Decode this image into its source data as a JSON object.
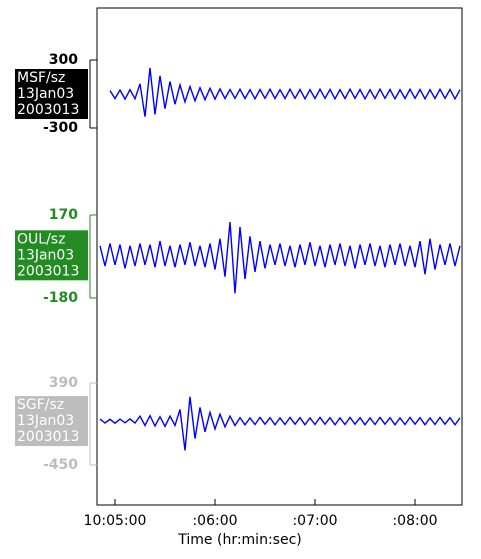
{
  "chart_data": {
    "type": "line",
    "xlabel": "Time (hr:min:sec)",
    "xlim": [
      4.82,
      8.47
    ],
    "xticks": [
      {
        "value": 5,
        "label": "10:05:00"
      },
      {
        "value": 6,
        "label": ":06:00"
      },
      {
        "value": 7,
        "label": ":07:00"
      },
      {
        "value": 8,
        "label": ":08:00"
      }
    ],
    "x": [
      4.85,
      4.9,
      4.95,
      5,
      5.05,
      5.1,
      5.15,
      5.2,
      5.25,
      5.3,
      5.35,
      5.4,
      5.45,
      5.5,
      5.55,
      5.6,
      5.65,
      5.7,
      5.75,
      5.8,
      5.85,
      5.9,
      5.95,
      6,
      6.05,
      6.1,
      6.15,
      6.2,
      6.25,
      6.3,
      6.35,
      6.4,
      6.45,
      6.5,
      6.55,
      6.6,
      6.65,
      6.7,
      6.75,
      6.8,
      6.85,
      6.9,
      6.95,
      7,
      7.05,
      7.1,
      7.15,
      7.2,
      7.25,
      7.3,
      7.35,
      7.4,
      7.45,
      7.5,
      7.55,
      7.6,
      7.65,
      7.7,
      7.75,
      7.8,
      7.85,
      7.9,
      7.95,
      8,
      8.05,
      8.1,
      8.15,
      8.2,
      8.25,
      8.3,
      8.35,
      8.4,
      8.45
    ],
    "series": [
      {
        "name": "MSF/sz",
        "date": "13Jan03",
        "julian_day": "2003013",
        "label_color": "#000000",
        "color": "#0000ff",
        "ylim": [
          -300,
          300
        ],
        "yticks": [
          -300,
          300
        ],
        "values": [
          null,
          null,
          30,
          -40,
          35,
          -45,
          38,
          -42,
          90,
          -200,
          230,
          -180,
          160,
          -130,
          110,
          -90,
          80,
          -70,
          65,
          -60,
          55,
          -50,
          50,
          -45,
          45,
          -40,
          40,
          -38,
          42,
          -40,
          38,
          -42,
          40,
          -38,
          42,
          -40,
          38,
          -40,
          42,
          -38,
          40,
          -42,
          38,
          -40,
          42,
          -38,
          40,
          -42,
          38,
          -40,
          42,
          -38,
          40,
          -42,
          38,
          -40,
          42,
          -38,
          40,
          -42,
          38,
          -40,
          42,
          -38,
          40,
          -42,
          38,
          -40,
          42,
          -38,
          40,
          -42,
          38
        ]
      },
      {
        "name": "OUL/sz",
        "date": "13Jan03",
        "julian_day": "2003013",
        "label_color": "#228b22",
        "color": "#0000ff",
        "ylim": [
          -180,
          170
        ],
        "yticks": [
          -180,
          170
        ],
        "values": [
          40,
          -45,
          50,
          -40,
          45,
          -55,
          40,
          -45,
          50,
          -40,
          45,
          -50,
          60,
          -45,
          40,
          -50,
          45,
          -40,
          55,
          -45,
          40,
          -50,
          50,
          -60,
          70,
          -90,
          140,
          -160,
          120,
          -100,
          80,
          -70,
          60,
          -55,
          45,
          -40,
          50,
          -45,
          40,
          -50,
          45,
          -40,
          55,
          -45,
          40,
          -50,
          45,
          -40,
          50,
          -45,
          40,
          -55,
          45,
          -40,
          50,
          -45,
          40,
          -50,
          45,
          -40,
          50,
          -45,
          40,
          -50,
          60,
          -80,
          70,
          -60,
          45,
          -40,
          50,
          -45,
          40
        ]
      },
      {
        "name": "SGF/sz",
        "date": "13Jan03",
        "julian_day": "2003013",
        "label_color": "#bdbdbd",
        "color": "#0000ff",
        "ylim": [
          -450,
          390
        ],
        "yticks": [
          -450,
          390
        ],
        "values": [
          20,
          -20,
          18,
          -22,
          20,
          -18,
          22,
          -20,
          50,
          -45,
          55,
          -50,
          45,
          -55,
          50,
          -45,
          120,
          -300,
          250,
          -180,
          140,
          -110,
          90,
          -80,
          70,
          -60,
          50,
          -45,
          35,
          -38,
          32,
          -35,
          38,
          -32,
          35,
          -38,
          32,
          -35,
          38,
          -32,
          35,
          -38,
          32,
          -35,
          38,
          -32,
          35,
          -38,
          32,
          -35,
          38,
          -32,
          35,
          -38,
          32,
          -35,
          38,
          -32,
          35,
          -38,
          32,
          -35,
          38,
          -32,
          35,
          -38,
          32,
          -35,
          38,
          -32,
          35,
          -38,
          32
        ]
      }
    ]
  }
}
